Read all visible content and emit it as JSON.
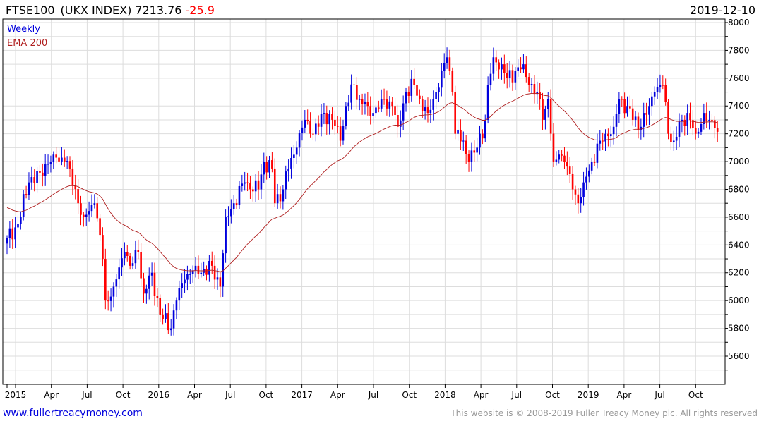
{
  "header": {
    "symbol": "FTSE100",
    "index_name": "(UKX INDEX)",
    "last": "7213.76",
    "change": "-25.9",
    "date": "2019-12-10"
  },
  "legend": {
    "period": "Weekly",
    "indicator": "EMA 200"
  },
  "footer": {
    "link": "www.fullertreacymoney.com",
    "copyright": "This website is © 2008-2019 Fuller Treacy Money plc. All rights reserved"
  },
  "colors": {
    "up": "#0000dd",
    "down": "#ff0000",
    "ema": "#b02020",
    "grid": "#dddddd"
  },
  "chart_data": {
    "type": "candlestick",
    "title": "FTSE100 (UKX INDEX) Weekly",
    "ylim": [
      5400,
      8000
    ],
    "yticks": [
      5600,
      5800,
      6000,
      6200,
      6400,
      6600,
      6800,
      7000,
      7200,
      7400,
      7600,
      7800,
      8000
    ],
    "xtick_labels": [
      "2015",
      "Apr",
      "Jul",
      "Oct",
      "2016",
      "Apr",
      "Jul",
      "Oct",
      "2017",
      "Apr",
      "Jul",
      "Oct",
      "2018",
      "Apr",
      "Jul",
      "Oct",
      "2019",
      "Apr",
      "Jul",
      "Oct"
    ],
    "x_unit": "weeks since first bar (mid-Dec 2014)",
    "ema_period_weeks": 40,
    "ema_seed": 6680,
    "close_keypoints": [
      [
        0,
        6450
      ],
      [
        4,
        6550
      ],
      [
        8,
        6850
      ],
      [
        12,
        6920
      ],
      [
        17,
        7050
      ],
      [
        21,
        7000
      ],
      [
        23,
        6950
      ],
      [
        26,
        6700
      ],
      [
        28,
        6600
      ],
      [
        32,
        6700
      ],
      [
        35,
        6300
      ],
      [
        36,
        6000
      ],
      [
        39,
        6100
      ],
      [
        43,
        6350
      ],
      [
        45,
        6250
      ],
      [
        48,
        6350
      ],
      [
        50,
        6050
      ],
      [
        53,
        6200
      ],
      [
        56,
        5900
      ],
      [
        60,
        5800
      ],
      [
        62,
        6000
      ],
      [
        65,
        6150
      ],
      [
        69,
        6250
      ],
      [
        71,
        6200
      ],
      [
        75,
        6250
      ],
      [
        78,
        6100
      ],
      [
        80,
        6600
      ],
      [
        83,
        6700
      ],
      [
        87,
        6850
      ],
      [
        89,
        6800
      ],
      [
        92,
        6800
      ],
      [
        94,
        7000
      ],
      [
        97,
        6950
      ],
      [
        98,
        6700
      ],
      [
        101,
        6800
      ],
      [
        103,
        6950
      ],
      [
        106,
        7100
      ],
      [
        109,
        7300
      ],
      [
        111,
        7200
      ],
      [
        114,
        7250
      ],
      [
        116,
        7350
      ],
      [
        119,
        7300
      ],
      [
        122,
        7150
      ],
      [
        124,
        7400
      ],
      [
        127,
        7550
      ],
      [
        129,
        7450
      ],
      [
        132,
        7400
      ],
      [
        134,
        7350
      ],
      [
        137,
        7450
      ],
      [
        141,
        7400
      ],
      [
        143,
        7250
      ],
      [
        146,
        7500
      ],
      [
        149,
        7550
      ],
      [
        151,
        7450
      ],
      [
        154,
        7350
      ],
      [
        156,
        7450
      ],
      [
        159,
        7650
      ],
      [
        161,
        7750
      ],
      [
        163,
        7500
      ],
      [
        164,
        7200
      ],
      [
        167,
        7150
      ],
      [
        169,
        7000
      ],
      [
        172,
        7100
      ],
      [
        175,
        7300
      ],
      [
        176,
        7550
      ],
      [
        178,
        7750
      ],
      [
        181,
        7700
      ],
      [
        183,
        7600
      ],
      [
        186,
        7650
      ],
      [
        189,
        7700
      ],
      [
        191,
        7550
      ],
      [
        194,
        7500
      ],
      [
        196,
        7300
      ],
      [
        198,
        7450
      ],
      [
        200,
        7000
      ],
      [
        202,
        7050
      ],
      [
        204,
        7000
      ],
      [
        207,
        6800
      ],
      [
        209,
        6700
      ],
      [
        211,
        6850
      ],
      [
        214,
        7000
      ],
      [
        217,
        7150
      ],
      [
        219,
        7200
      ],
      [
        222,
        7250
      ],
      [
        224,
        7450
      ],
      [
        227,
        7400
      ],
      [
        229,
        7300
      ],
      [
        232,
        7250
      ],
      [
        235,
        7400
      ],
      [
        237,
        7500
      ],
      [
        240,
        7550
      ],
      [
        242,
        7200
      ],
      [
        244,
        7150
      ],
      [
        247,
        7300
      ],
      [
        249,
        7350
      ],
      [
        252,
        7200
      ],
      [
        255,
        7350
      ],
      [
        257,
        7300
      ],
      [
        259,
        7240
      ],
      [
        260,
        7214
      ]
    ]
  }
}
